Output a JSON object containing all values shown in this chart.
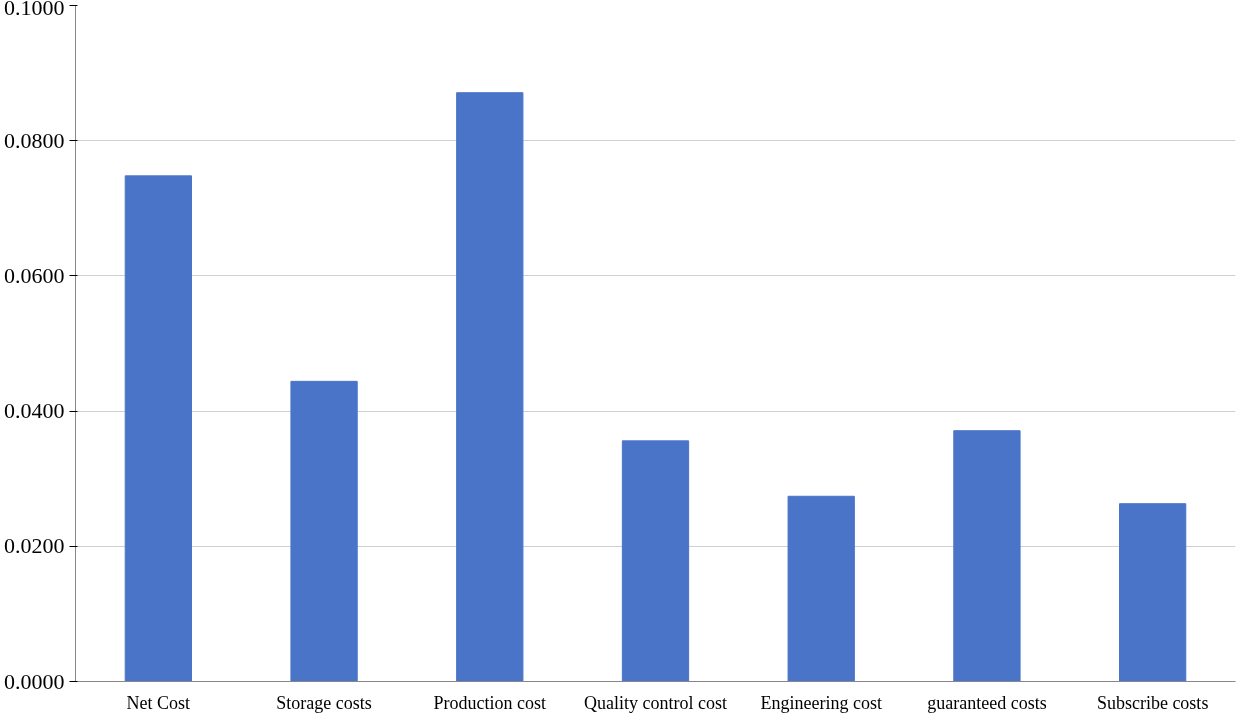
{
  "chart_data": {
    "type": "bar",
    "categories": [
      "Net Cost",
      "Storage costs",
      "Production cost",
      "Quality control cost",
      "Engineering cost",
      "guaranteed costs",
      "Subscribe costs"
    ],
    "values": [
      0.0748,
      0.0444,
      0.0871,
      0.0356,
      0.0274,
      0.0371,
      0.0263
    ],
    "color": "#4a74c8",
    "ylim": [
      0,
      0.1
    ],
    "yticks": [
      {
        "value": 0,
        "label": "0.0000"
      },
      {
        "value": 0.02,
        "label": "0.0200"
      },
      {
        "value": 0.04,
        "label": "0.0400"
      },
      {
        "value": 0.06,
        "label": "0.0600"
      },
      {
        "value": 0.08,
        "label": "0.0800"
      },
      {
        "value": 0.1,
        "label": "0.1000"
      }
    ],
    "grid": "y"
  }
}
